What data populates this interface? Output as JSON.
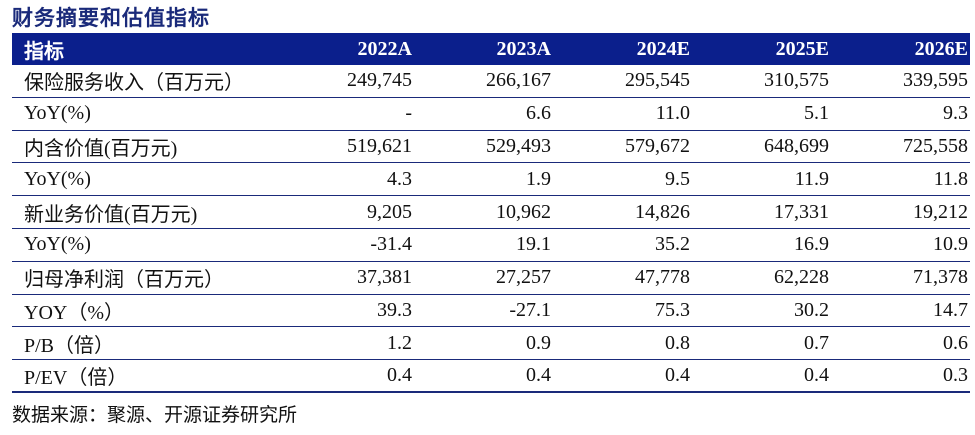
{
  "title": "财务摘要和估值指标",
  "table": {
    "headers": [
      "指标",
      "2022A",
      "2023A",
      "2024E",
      "2025E",
      "2026E"
    ],
    "rows": [
      {
        "label": "保险服务收入（百万元）",
        "values": [
          "249,745",
          "266,167",
          "295,545",
          "310,575",
          "339,595"
        ]
      },
      {
        "label": "YoY(%)",
        "values": [
          "-",
          "6.6",
          "11.0",
          "5.1",
          "9.3"
        ]
      },
      {
        "label": "内含价值(百万元)",
        "values": [
          "519,621",
          "529,493",
          "579,672",
          "648,699",
          "725,558"
        ]
      },
      {
        "label": "YoY(%)",
        "values": [
          "4.3",
          "1.9",
          "9.5",
          "11.9",
          "11.8"
        ]
      },
      {
        "label": "新业务价值(百万元)",
        "values": [
          "9,205",
          "10,962",
          "14,826",
          "17,331",
          "19,212"
        ]
      },
      {
        "label": "YoY(%)",
        "values": [
          "-31.4",
          "19.1",
          "35.2",
          "16.9",
          "10.9"
        ]
      },
      {
        "label": "归母净利润（百万元）",
        "values": [
          "37,381",
          "27,257",
          "47,778",
          "62,228",
          "71,378"
        ]
      },
      {
        "label": "YOY（%）",
        "values": [
          "39.3",
          "-27.1",
          "75.3",
          "30.2",
          "14.7"
        ]
      },
      {
        "label": "P/B（倍）",
        "values": [
          "1.2",
          "0.9",
          "0.8",
          "0.7",
          "0.6"
        ]
      },
      {
        "label": "P/EV（倍）",
        "values": [
          "0.4",
          "0.4",
          "0.4",
          "0.4",
          "0.3"
        ]
      }
    ]
  },
  "source": "数据来源：聚源、开源证券研究所",
  "colors": {
    "title": "#1a2a7a",
    "header_bg": "#0b1f8c",
    "header_text": "#ffffff",
    "rule": "#1a2a7a"
  }
}
